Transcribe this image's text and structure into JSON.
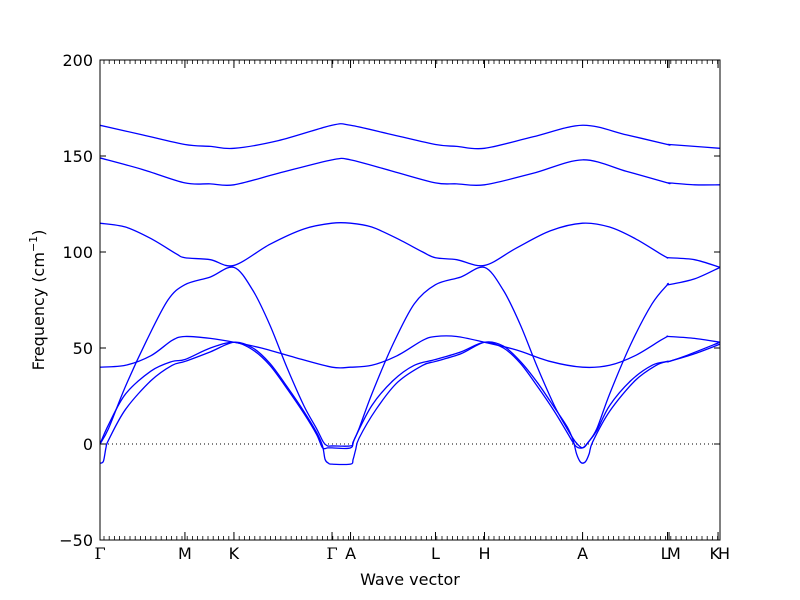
{
  "chart_data": {
    "type": "line",
    "xlabel": "Wave vector",
    "ylabel": "Frequency (cm",
    "ylabel_sup": "−1",
    "ylabel_close": ")",
    "ylim": [
      -50,
      200
    ],
    "yticks": [
      -50,
      0,
      50,
      100,
      150,
      200
    ],
    "zero_line": "dotted",
    "grid": false,
    "line_color": "#0000ff",
    "x_labels": [
      {
        "x": 0.0,
        "label": "Γ"
      },
      {
        "x": 1.0,
        "label": "M"
      },
      {
        "x": 1.577,
        "label": "K"
      },
      {
        "x": 2.732,
        "label": "Γ"
      },
      {
        "x": 2.95,
        "label": "A"
      },
      {
        "x": 3.95,
        "label": "L"
      },
      {
        "x": 4.527,
        "label": "H"
      },
      {
        "x": 5.682,
        "label": "A"
      },
      {
        "x": 6.682,
        "label": "L"
      },
      {
        "x": 6.7,
        "label": "M"
      },
      {
        "x": 7.277,
        "label": "K"
      },
      {
        "x": 7.3,
        "label": "H"
      }
    ],
    "xlim": [
      0,
      7.3
    ],
    "series": [
      {
        "points": [
          [
            0,
            166
          ],
          [
            0.5,
            161
          ],
          [
            1.0,
            156
          ],
          [
            1.3,
            155
          ],
          [
            1.577,
            154
          ],
          [
            2.1,
            158
          ],
          [
            2.732,
            166
          ],
          [
            2.95,
            166
          ],
          [
            3.45,
            161
          ],
          [
            3.95,
            156
          ],
          [
            4.2,
            155
          ],
          [
            4.527,
            154
          ],
          [
            5.1,
            160
          ],
          [
            5.682,
            166
          ],
          [
            6.2,
            161
          ],
          [
            6.682,
            156
          ],
          [
            6.7,
            156
          ],
          [
            7.0,
            155
          ],
          [
            7.3,
            154
          ]
        ]
      },
      {
        "points": [
          [
            0,
            149
          ],
          [
            0.5,
            143
          ],
          [
            1.0,
            136
          ],
          [
            1.3,
            135.5
          ],
          [
            1.577,
            135
          ],
          [
            2.1,
            141
          ],
          [
            2.732,
            148
          ],
          [
            2.95,
            148
          ],
          [
            3.45,
            142
          ],
          [
            3.95,
            136
          ],
          [
            4.2,
            135.5
          ],
          [
            4.527,
            135
          ],
          [
            5.1,
            141
          ],
          [
            5.682,
            148
          ],
          [
            6.2,
            142
          ],
          [
            6.682,
            136
          ],
          [
            6.7,
            136
          ],
          [
            7.0,
            135
          ],
          [
            7.3,
            135
          ]
        ]
      },
      {
        "points": [
          [
            0,
            115
          ],
          [
            0.3,
            113
          ],
          [
            0.6,
            107
          ],
          [
            0.9,
            99
          ],
          [
            1.0,
            97
          ],
          [
            1.3,
            96
          ],
          [
            1.577,
            93
          ],
          [
            2.0,
            104
          ],
          [
            2.4,
            112
          ],
          [
            2.732,
            115
          ],
          [
            2.95,
            115
          ],
          [
            3.2,
            113
          ],
          [
            3.5,
            107
          ],
          [
            3.8,
            100
          ],
          [
            3.95,
            97
          ],
          [
            4.2,
            96
          ],
          [
            4.527,
            93
          ],
          [
            4.9,
            102
          ],
          [
            5.3,
            111
          ],
          [
            5.682,
            115
          ],
          [
            6.0,
            113
          ],
          [
            6.3,
            107
          ],
          [
            6.6,
            99
          ],
          [
            6.682,
            97
          ],
          [
            6.7,
            97
          ],
          [
            7.0,
            96
          ],
          [
            7.3,
            92
          ]
        ]
      },
      {
        "points": [
          [
            0,
            40
          ],
          [
            0.3,
            41
          ],
          [
            0.6,
            46
          ],
          [
            0.85,
            54
          ],
          [
            1.0,
            56
          ],
          [
            1.3,
            55
          ],
          [
            1.577,
            53
          ],
          [
            1.9,
            50
          ],
          [
            2.3,
            45
          ],
          [
            2.732,
            40
          ],
          [
            2.95,
            40
          ],
          [
            3.2,
            41
          ],
          [
            3.5,
            46
          ],
          [
            3.8,
            54
          ],
          [
            3.95,
            56
          ],
          [
            4.2,
            56
          ],
          [
            4.527,
            53
          ],
          [
            4.9,
            49
          ],
          [
            5.3,
            43
          ],
          [
            5.682,
            40
          ],
          [
            6.0,
            41
          ],
          [
            6.3,
            46
          ],
          [
            6.6,
            54
          ],
          [
            6.682,
            56
          ],
          [
            6.7,
            56
          ],
          [
            7.0,
            55
          ],
          [
            7.3,
            53
          ]
        ]
      },
      {
        "points": [
          [
            0,
            -10
          ],
          [
            0.04,
            -9
          ],
          [
            0.07,
            -2
          ],
          [
            0.1,
            2
          ],
          [
            0.3,
            18
          ],
          [
            0.6,
            33
          ],
          [
            0.85,
            41
          ],
          [
            1.0,
            43
          ],
          [
            1.3,
            48
          ],
          [
            1.577,
            53
          ],
          [
            1.8,
            50
          ],
          [
            2.0,
            42
          ],
          [
            2.2,
            30
          ],
          [
            2.4,
            17
          ],
          [
            2.55,
            6
          ],
          [
            2.62,
            -1
          ],
          [
            2.65,
            -8
          ],
          [
            2.69,
            -10
          ],
          [
            2.732,
            -10.5
          ],
          [
            2.95,
            -10.5
          ],
          [
            2.98,
            -8
          ],
          [
            3.01,
            -3
          ],
          [
            3.05,
            3
          ],
          [
            3.25,
            18
          ],
          [
            3.5,
            32
          ],
          [
            3.8,
            41
          ],
          [
            3.95,
            43
          ],
          [
            4.25,
            47
          ],
          [
            4.527,
            53
          ],
          [
            4.75,
            51
          ],
          [
            4.95,
            43
          ],
          [
            5.15,
            32
          ],
          [
            5.35,
            19
          ],
          [
            5.5,
            9
          ],
          [
            5.57,
            2
          ],
          [
            5.61,
            -5
          ],
          [
            5.65,
            -9
          ],
          [
            5.682,
            -10
          ],
          [
            5.72,
            -9
          ],
          [
            5.76,
            -5
          ],
          [
            5.8,
            1
          ],
          [
            6.0,
            17
          ],
          [
            6.3,
            33
          ],
          [
            6.55,
            41
          ],
          [
            6.682,
            43
          ],
          [
            6.7,
            43
          ],
          [
            6.9,
            46
          ],
          [
            7.3,
            53
          ]
        ]
      },
      {
        "points": [
          [
            0,
            0
          ],
          [
            0.1,
            8
          ],
          [
            0.3,
            30
          ],
          [
            0.55,
            54
          ],
          [
            0.8,
            75
          ],
          [
            1.0,
            83
          ],
          [
            1.3,
            87
          ],
          [
            1.577,
            92
          ],
          [
            1.8,
            80
          ],
          [
            2.0,
            62
          ],
          [
            2.2,
            40
          ],
          [
            2.4,
            20
          ],
          [
            2.55,
            8
          ],
          [
            2.63,
            1
          ],
          [
            2.68,
            -1
          ],
          [
            2.732,
            -1
          ],
          [
            2.95,
            -1
          ],
          [
            2.98,
            1
          ],
          [
            3.05,
            8
          ],
          [
            3.2,
            26
          ],
          [
            3.45,
            52
          ],
          [
            3.7,
            73
          ],
          [
            3.95,
            83
          ],
          [
            4.25,
            87
          ],
          [
            4.527,
            92
          ],
          [
            4.75,
            80
          ],
          [
            4.95,
            62
          ],
          [
            5.15,
            40
          ],
          [
            5.35,
            20
          ],
          [
            5.5,
            8
          ],
          [
            5.6,
            1
          ],
          [
            5.682,
            -2
          ],
          [
            5.75,
            1
          ],
          [
            5.85,
            8
          ],
          [
            6.0,
            26
          ],
          [
            6.25,
            52
          ],
          [
            6.5,
            73
          ],
          [
            6.682,
            83
          ],
          [
            6.7,
            83
          ],
          [
            7.0,
            86
          ],
          [
            7.3,
            92
          ]
        ]
      },
      {
        "points": [
          [
            0,
            0
          ],
          [
            0.1,
            10
          ],
          [
            0.3,
            26
          ],
          [
            0.6,
            38
          ],
          [
            0.85,
            43
          ],
          [
            1.0,
            44
          ],
          [
            1.3,
            50
          ],
          [
            1.577,
            53
          ],
          [
            1.8,
            49
          ],
          [
            2.0,
            41
          ],
          [
            2.2,
            29
          ],
          [
            2.4,
            16
          ],
          [
            2.55,
            5
          ],
          [
            2.62,
            -2
          ],
          [
            2.68,
            -2
          ],
          [
            2.732,
            -2
          ],
          [
            2.95,
            -2
          ],
          [
            3.0,
            3
          ],
          [
            3.2,
            20
          ],
          [
            3.45,
            33
          ],
          [
            3.7,
            41
          ],
          [
            3.95,
            44
          ],
          [
            4.25,
            48
          ],
          [
            4.527,
            53
          ],
          [
            4.75,
            50
          ],
          [
            4.95,
            42
          ],
          [
            5.15,
            30
          ],
          [
            5.35,
            17
          ],
          [
            5.5,
            6
          ],
          [
            5.6,
            -1
          ],
          [
            5.682,
            -2
          ],
          [
            5.75,
            1
          ],
          [
            5.85,
            7
          ],
          [
            6.0,
            20
          ],
          [
            6.25,
            33
          ],
          [
            6.5,
            41
          ],
          [
            6.682,
            43
          ],
          [
            6.7,
            43
          ],
          [
            7.0,
            47
          ],
          [
            7.3,
            52
          ]
        ]
      }
    ]
  }
}
